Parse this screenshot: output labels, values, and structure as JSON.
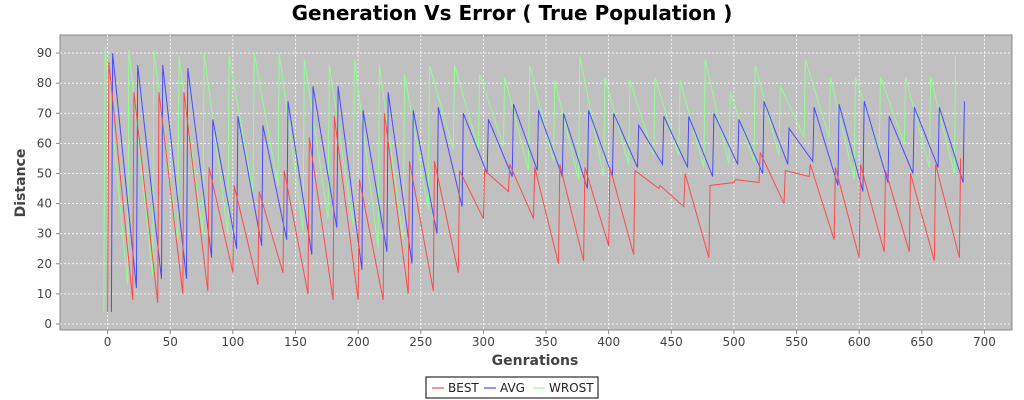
{
  "chart_data": {
    "type": "line",
    "title": "Generation Vs Error ( True Population )",
    "xlabel": "Genrations",
    "ylabel": "Distance",
    "xlim": [
      -38,
      722
    ],
    "ylim": [
      -2,
      96
    ],
    "xticks": [
      0,
      50,
      100,
      150,
      200,
      250,
      300,
      350,
      400,
      450,
      500,
      550,
      600,
      650,
      700
    ],
    "yticks": [
      0,
      10,
      20,
      30,
      40,
      50,
      60,
      70,
      80,
      90
    ],
    "grid": true,
    "legend_position": "bottom-center",
    "plot_background": "#c0c0c0",
    "series": [
      {
        "name": "BEST",
        "color": "#ff4a4a",
        "points": [
          [
            0,
            4
          ],
          [
            1,
            87
          ],
          [
            20,
            8
          ],
          [
            21,
            77
          ],
          [
            40,
            7
          ],
          [
            41,
            77
          ],
          [
            60,
            10
          ],
          [
            61,
            77
          ],
          [
            80,
            11
          ],
          [
            81,
            52
          ],
          [
            100,
            17
          ],
          [
            101,
            46
          ],
          [
            120,
            13
          ],
          [
            121,
            44
          ],
          [
            140,
            17
          ],
          [
            141,
            51
          ],
          [
            160,
            10
          ],
          [
            161,
            62
          ],
          [
            180,
            8
          ],
          [
            181,
            69
          ],
          [
            200,
            8
          ],
          [
            201,
            48
          ],
          [
            220,
            8
          ],
          [
            221,
            70
          ],
          [
            240,
            10
          ],
          [
            241,
            54
          ],
          [
            260,
            11
          ],
          [
            261,
            54
          ],
          [
            280,
            17
          ],
          [
            281,
            51
          ],
          [
            300,
            35
          ],
          [
            301,
            51
          ],
          [
            320,
            44
          ],
          [
            321,
            53
          ],
          [
            340,
            35
          ],
          [
            341,
            52
          ],
          [
            360,
            20
          ],
          [
            361,
            53
          ],
          [
            380,
            21
          ],
          [
            381,
            52
          ],
          [
            400,
            26
          ],
          [
            401,
            52
          ],
          [
            420,
            23
          ],
          [
            421,
            51
          ],
          [
            440,
            45
          ],
          [
            441,
            46
          ],
          [
            460,
            39
          ],
          [
            461,
            50
          ],
          [
            480,
            22
          ],
          [
            481,
            46
          ],
          [
            500,
            47
          ],
          [
            501,
            48
          ],
          [
            520,
            47
          ],
          [
            521,
            57
          ],
          [
            540,
            40
          ],
          [
            541,
            51
          ],
          [
            560,
            49
          ],
          [
            561,
            53
          ],
          [
            580,
            28
          ],
          [
            581,
            52
          ],
          [
            600,
            22
          ],
          [
            601,
            53
          ],
          [
            620,
            24
          ],
          [
            621,
            51
          ],
          [
            640,
            24
          ],
          [
            641,
            50
          ],
          [
            660,
            21
          ],
          [
            661,
            53
          ],
          [
            680,
            22
          ],
          [
            681,
            55
          ]
        ]
      },
      {
        "name": "AVG",
        "color": "#4a4aff",
        "points": [
          [
            3,
            4
          ],
          [
            4,
            90
          ],
          [
            23,
            12
          ],
          [
            24,
            86
          ],
          [
            43,
            15
          ],
          [
            44,
            86
          ],
          [
            63,
            15
          ],
          [
            64,
            85
          ],
          [
            83,
            22
          ],
          [
            84,
            68
          ],
          [
            103,
            25
          ],
          [
            104,
            69
          ],
          [
            123,
            26
          ],
          [
            124,
            66
          ],
          [
            143,
            28
          ],
          [
            144,
            74
          ],
          [
            163,
            23
          ],
          [
            164,
            79
          ],
          [
            183,
            32
          ],
          [
            184,
            79
          ],
          [
            203,
            18
          ],
          [
            204,
            71
          ],
          [
            223,
            24
          ],
          [
            224,
            77
          ],
          [
            243,
            20
          ],
          [
            244,
            71
          ],
          [
            263,
            30
          ],
          [
            264,
            72
          ],
          [
            283,
            39
          ],
          [
            284,
            70
          ],
          [
            303,
            50
          ],
          [
            304,
            68
          ],
          [
            323,
            49
          ],
          [
            324,
            73
          ],
          [
            343,
            51
          ],
          [
            344,
            71
          ],
          [
            363,
            49
          ],
          [
            364,
            70
          ],
          [
            383,
            45
          ],
          [
            384,
            71
          ],
          [
            403,
            49
          ],
          [
            404,
            70
          ],
          [
            423,
            52
          ],
          [
            424,
            66
          ],
          [
            443,
            53
          ],
          [
            444,
            69
          ],
          [
            463,
            52
          ],
          [
            464,
            69
          ],
          [
            483,
            49
          ],
          [
            484,
            70
          ],
          [
            503,
            53
          ],
          [
            504,
            68
          ],
          [
            523,
            50
          ],
          [
            524,
            74
          ],
          [
            543,
            53
          ],
          [
            544,
            65
          ],
          [
            563,
            54
          ],
          [
            564,
            72
          ],
          [
            583,
            46
          ],
          [
            584,
            73
          ],
          [
            603,
            44
          ],
          [
            604,
            74
          ],
          [
            623,
            47
          ],
          [
            624,
            69
          ],
          [
            643,
            50
          ],
          [
            644,
            72
          ],
          [
            663,
            52
          ],
          [
            664,
            72
          ],
          [
            683,
            47
          ],
          [
            684,
            74
          ]
        ]
      },
      {
        "name": "WROST",
        "color": "#90ff90",
        "points": [
          [
            -3,
            4
          ],
          [
            -2,
            92
          ],
          [
            16,
            13
          ],
          [
            17,
            91
          ],
          [
            36,
            16
          ],
          [
            37,
            91
          ],
          [
            56,
            27
          ],
          [
            57,
            89
          ],
          [
            76,
            30
          ],
          [
            77,
            90
          ],
          [
            96,
            30
          ],
          [
            97,
            89
          ],
          [
            116,
            44
          ],
          [
            117,
            90
          ],
          [
            136,
            46
          ],
          [
            137,
            90
          ],
          [
            156,
            31
          ],
          [
            157,
            88
          ],
          [
            176,
            35
          ],
          [
            177,
            86
          ],
          [
            196,
            33
          ],
          [
            197,
            88
          ],
          [
            216,
            25
          ],
          [
            217,
            86
          ],
          [
            236,
            28
          ],
          [
            237,
            83
          ],
          [
            256,
            38
          ],
          [
            257,
            86
          ],
          [
            276,
            58
          ],
          [
            277,
            86
          ],
          [
            296,
            58
          ],
          [
            297,
            83
          ],
          [
            316,
            59
          ],
          [
            317,
            82
          ],
          [
            336,
            51
          ],
          [
            337,
            86
          ],
          [
            356,
            54
          ],
          [
            357,
            81
          ],
          [
            376,
            48
          ],
          [
            377,
            89
          ],
          [
            396,
            49
          ],
          [
            397,
            82
          ],
          [
            416,
            53
          ],
          [
            417,
            81
          ],
          [
            436,
            56
          ],
          [
            437,
            82
          ],
          [
            456,
            56
          ],
          [
            457,
            81
          ],
          [
            476,
            52
          ],
          [
            477,
            88
          ],
          [
            496,
            53
          ],
          [
            497,
            77
          ],
          [
            516,
            54
          ],
          [
            517,
            86
          ],
          [
            536,
            56
          ],
          [
            537,
            79
          ],
          [
            556,
            62
          ],
          [
            557,
            88
          ],
          [
            576,
            62
          ],
          [
            577,
            82
          ],
          [
            596,
            48
          ],
          [
            597,
            82
          ],
          [
            616,
            58
          ],
          [
            617,
            82
          ],
          [
            636,
            60
          ],
          [
            637,
            82
          ],
          [
            656,
            52
          ],
          [
            657,
            82
          ],
          [
            676,
            50
          ],
          [
            677,
            89
          ]
        ]
      }
    ]
  }
}
